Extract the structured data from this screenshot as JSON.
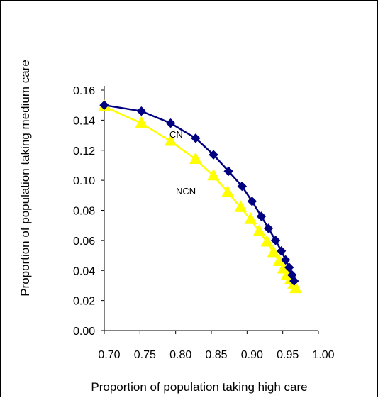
{
  "chart_data": {
    "type": "line",
    "title": "",
    "xlabel": "Proportion of population taking high care",
    "ylabel": "Proportion of population taking medium care",
    "xlim": [
      0.7,
      1.0
    ],
    "ylim": [
      0.0,
      0.16
    ],
    "x_ticks": [
      "0.70",
      "0.75",
      "0.80",
      "0.85",
      "0.90",
      "0.95",
      "1.00"
    ],
    "y_ticks": [
      "0.00",
      "0.02",
      "0.04",
      "0.06",
      "0.08",
      "0.10",
      "0.12",
      "0.14",
      "0.16"
    ],
    "grid": false,
    "legend": "none",
    "series": [
      {
        "name": "CN",
        "color": "#000080",
        "marker": "diamond",
        "x": [
          0.7,
          0.752,
          0.793,
          0.828,
          0.853,
          0.874,
          0.893,
          0.907,
          0.92,
          0.93,
          0.94,
          0.948,
          0.954,
          0.959,
          0.963,
          0.966
        ],
        "y": [
          0.15,
          0.146,
          0.138,
          0.128,
          0.117,
          0.106,
          0.096,
          0.086,
          0.076,
          0.068,
          0.06,
          0.053,
          0.047,
          0.042,
          0.037,
          0.033
        ]
      },
      {
        "name": "NCN",
        "color": "#ffff00",
        "marker": "triangle",
        "x": [
          0.7,
          0.752,
          0.793,
          0.828,
          0.853,
          0.873,
          0.891,
          0.905,
          0.917,
          0.928,
          0.937,
          0.945,
          0.951,
          0.956,
          0.961,
          0.965,
          0.968
        ],
        "y": [
          0.149,
          0.138,
          0.126,
          0.114,
          0.103,
          0.092,
          0.082,
          0.074,
          0.066,
          0.059,
          0.052,
          0.046,
          0.041,
          0.037,
          0.034,
          0.031,
          0.028
        ]
      }
    ]
  }
}
